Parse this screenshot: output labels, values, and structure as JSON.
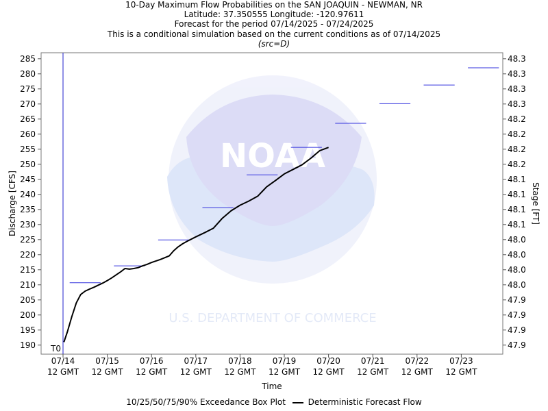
{
  "header": {
    "title_line1": "10-Day Maximum Flow Probabilities on the SAN JOAQUIN - NEWMAN, NR",
    "title_line2": "Latitude: 37.350555 Longitude: -120.97611",
    "title_line3": "Forecast for the period 07/14/2025 - 07/24/2025",
    "title_line4": "This is a conditional simulation based on the current conditions as of 07/14/2025",
    "title_line5": "(src=D)"
  },
  "legend": {
    "box_plot_label": "10/25/50/75/90% Exceedance Box Plot",
    "deterministic_label": "Deterministic Forecast Flow"
  },
  "chart_data": {
    "type": "line",
    "xlabel": "Time",
    "ylabel_left": "Discharge [CFS]",
    "ylabel_right": "Stage [FT]",
    "ylim": [
      187,
      287
    ],
    "xlim_days": [
      0,
      10
    ],
    "y_ticks": [
      190,
      195,
      200,
      205,
      210,
      215,
      220,
      225,
      230,
      235,
      240,
      245,
      250,
      255,
      260,
      265,
      270,
      275,
      280,
      285
    ],
    "stage_tick_labels": [
      "47.9",
      "47.9",
      "47.9",
      "47.9",
      "48.0",
      "48.0",
      "48.0",
      "48.0",
      "48.1",
      "48.1",
      "48.1",
      "48.1",
      "48.2",
      "48.2",
      "48.2",
      "48.2",
      "48.3",
      "48.3",
      "48.3",
      "48.3"
    ],
    "x_tick_labels": [
      {
        "date": "07/14",
        "time": "12 GMT"
      },
      {
        "date": "07/15",
        "time": "12 GMT"
      },
      {
        "date": "07/16",
        "time": "12 GMT"
      },
      {
        "date": "07/17",
        "time": "12 GMT"
      },
      {
        "date": "07/18",
        "time": "12 GMT"
      },
      {
        "date": "07/19",
        "time": "12 GMT"
      },
      {
        "date": "07/20",
        "time": "12 GMT"
      },
      {
        "date": "07/21",
        "time": "12 GMT"
      },
      {
        "date": "07/22",
        "time": "12 GMT"
      },
      {
        "date": "07/23",
        "time": "12 GMT"
      }
    ],
    "t0_label": "T0",
    "t0_x": 0,
    "exceedance_markers": [
      {
        "x_start": 0.15,
        "x_end": 0.85,
        "value": 210.7
      },
      {
        "x_start": 1.15,
        "x_end": 1.85,
        "value": 216.3
      },
      {
        "x_start": 2.15,
        "x_end": 2.85,
        "value": 224.9
      },
      {
        "x_start": 3.15,
        "x_end": 3.85,
        "value": 235.6
      },
      {
        "x_start": 4.15,
        "x_end": 4.85,
        "value": 246.5
      },
      {
        "x_start": 5.15,
        "x_end": 5.85,
        "value": 255.6
      },
      {
        "x_start": 6.15,
        "x_end": 6.85,
        "value": 263.6
      },
      {
        "x_start": 7.15,
        "x_end": 7.85,
        "value": 270.1
      },
      {
        "x_start": 8.15,
        "x_end": 8.85,
        "value": 276.3
      },
      {
        "x_start": 9.15,
        "x_end": 9.85,
        "value": 282.0
      }
    ],
    "deterministic_series": {
      "x": [
        0.02,
        0.1,
        0.2,
        0.3,
        0.4,
        0.5,
        0.6,
        0.7,
        0.8,
        0.9,
        1.0,
        1.1,
        1.2,
        1.3,
        1.4,
        1.5,
        1.6,
        1.7,
        1.8,
        1.9,
        2.0,
        2.2,
        2.4,
        2.5,
        2.6,
        2.7,
        2.8,
        3.0,
        3.2,
        3.4,
        3.6,
        3.8,
        4.0,
        4.2,
        4.4,
        4.6,
        4.8,
        5.0,
        5.2,
        5.4,
        5.6,
        5.8,
        6.0
      ],
      "y": [
        191.0,
        194.5,
        199.5,
        204.0,
        206.8,
        207.9,
        208.6,
        209.2,
        209.9,
        210.6,
        211.4,
        212.3,
        213.3,
        214.3,
        215.4,
        215.2,
        215.4,
        215.7,
        216.3,
        216.8,
        217.4,
        218.4,
        219.6,
        221.3,
        222.6,
        223.6,
        224.4,
        225.9,
        227.3,
        228.8,
        232.1,
        234.6,
        236.4,
        237.8,
        239.4,
        242.5,
        244.6,
        246.8,
        248.3,
        249.8,
        252.0,
        254.5,
        255.6
      ]
    }
  }
}
